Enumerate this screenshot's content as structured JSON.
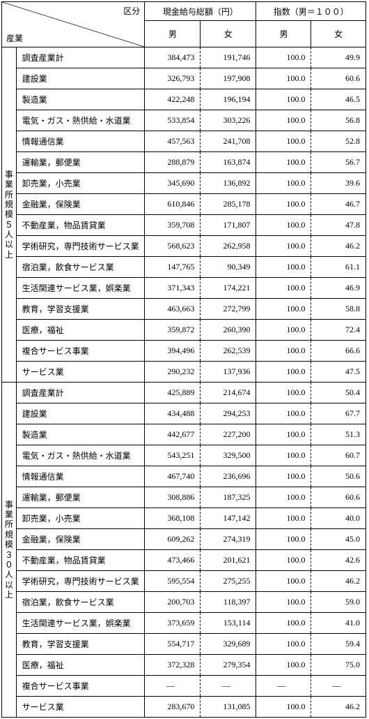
{
  "colors": {
    "border": "#000000",
    "text": "#000000",
    "background": "#ffffff"
  },
  "header": {
    "kubun": "区分",
    "sangyo": "産業",
    "salary_group": "現金給与総額（円）",
    "index_group": "指数（男＝１００）",
    "male": "男",
    "female": "女"
  },
  "groups": [
    {
      "label": "事業所規模５人以上",
      "rows": [
        {
          "label": "調査産業計",
          "m": "384,473",
          "f": "191,746",
          "im": "100.0",
          "if": "49.9"
        },
        {
          "label": "建設業",
          "m": "326,793",
          "f": "197,908",
          "im": "100.0",
          "if": "60.6"
        },
        {
          "label": "製造業",
          "m": "422,248",
          "f": "196,194",
          "im": "100.0",
          "if": "46.5"
        },
        {
          "label": "電気・ガス・熱供給・水道業",
          "m": "533,854",
          "f": "303,226",
          "im": "100.0",
          "if": "56.8"
        },
        {
          "label": "情報通信業",
          "m": "457,563",
          "f": "241,708",
          "im": "100.0",
          "if": "52.8"
        },
        {
          "label": "運輸業，郵便業",
          "m": "288,879",
          "f": "163,874",
          "im": "100.0",
          "if": "56.7"
        },
        {
          "label": "卸売業，小売業",
          "m": "345,690",
          "f": "136,892",
          "im": "100.0",
          "if": "39.6"
        },
        {
          "label": "金融業，保険業",
          "m": "610,846",
          "f": "285,178",
          "im": "100.0",
          "if": "46.7"
        },
        {
          "label": "不動産業，物品賃貸業",
          "m": "359,708",
          "f": "171,807",
          "im": "100.0",
          "if": "47.8"
        },
        {
          "label": "学術研究，専門技術サービス業",
          "m": "568,623",
          "f": "262,958",
          "im": "100.0",
          "if": "46.2"
        },
        {
          "label": "宿泊業，飲食サービス業",
          "m": "147,765",
          "f": "90,349",
          "im": "100.0",
          "if": "61.1"
        },
        {
          "label": "生活関連サービス業，娯楽業",
          "m": "371,343",
          "f": "174,221",
          "im": "100.0",
          "if": "46.9"
        },
        {
          "label": "教育，学習支援業",
          "m": "463,663",
          "f": "272,799",
          "im": "100.0",
          "if": "58.8"
        },
        {
          "label": "医療，福祉",
          "m": "359,872",
          "f": "260,390",
          "im": "100.0",
          "if": "72.4"
        },
        {
          "label": "複合サービス事業",
          "m": "394,496",
          "f": "262,539",
          "im": "100.0",
          "if": "66.6"
        },
        {
          "label": "サービス業",
          "m": "290,232",
          "f": "137,936",
          "im": "100.0",
          "if": "47.5"
        }
      ]
    },
    {
      "label": "事業所規模３０人以上",
      "rows": [
        {
          "label": "調査産業計",
          "m": "425,889",
          "f": "214,674",
          "im": "100.0",
          "if": "50.4"
        },
        {
          "label": "建設業",
          "m": "434,488",
          "f": "294,253",
          "im": "100.0",
          "if": "67.7"
        },
        {
          "label": "製造業",
          "m": "442,677",
          "f": "227,200",
          "im": "100.0",
          "if": "51.3"
        },
        {
          "label": "電気・ガス・熱供給・水道業",
          "m": "543,251",
          "f": "329,500",
          "im": "100.0",
          "if": "60.7"
        },
        {
          "label": "情報通信業",
          "m": "467,740",
          "f": "236,696",
          "im": "100.0",
          "if": "50.6"
        },
        {
          "label": "運輸業，郵便業",
          "m": "308,886",
          "f": "187,325",
          "im": "100.0",
          "if": "60.6"
        },
        {
          "label": "卸売業，小売業",
          "m": "368,108",
          "f": "147,142",
          "im": "100.0",
          "if": "40.0"
        },
        {
          "label": "金融業，保険業",
          "m": "609,262",
          "f": "274,319",
          "im": "100.0",
          "if": "45.0"
        },
        {
          "label": "不動産業，物品賃貸業",
          "m": "473,466",
          "f": "201,621",
          "im": "100.0",
          "if": "42.6"
        },
        {
          "label": "学術研究，専門技術サービス業",
          "m": "595,554",
          "f": "275,255",
          "im": "100.0",
          "if": "46.2"
        },
        {
          "label": "宿泊業，飲食サービス業",
          "m": "200,703",
          "f": "118,397",
          "im": "100.0",
          "if": "59.0"
        },
        {
          "label": "生活関連サービス業，娯楽業",
          "m": "373,659",
          "f": "153,114",
          "im": "100.0",
          "if": "41.0"
        },
        {
          "label": "教育，学習支援業",
          "m": "554,717",
          "f": "329,689",
          "im": "100.0",
          "if": "59.4"
        },
        {
          "label": "医療，福祉",
          "m": "372,328",
          "f": "279,354",
          "im": "100.0",
          "if": "75.0"
        },
        {
          "label": "複合サービス事業",
          "m": "—",
          "f": "—",
          "im": "—",
          "if": "—",
          "dash": true
        },
        {
          "label": "サービス業",
          "m": "283,670",
          "f": "131,085",
          "im": "100.0",
          "if": "46.2"
        }
      ]
    }
  ]
}
